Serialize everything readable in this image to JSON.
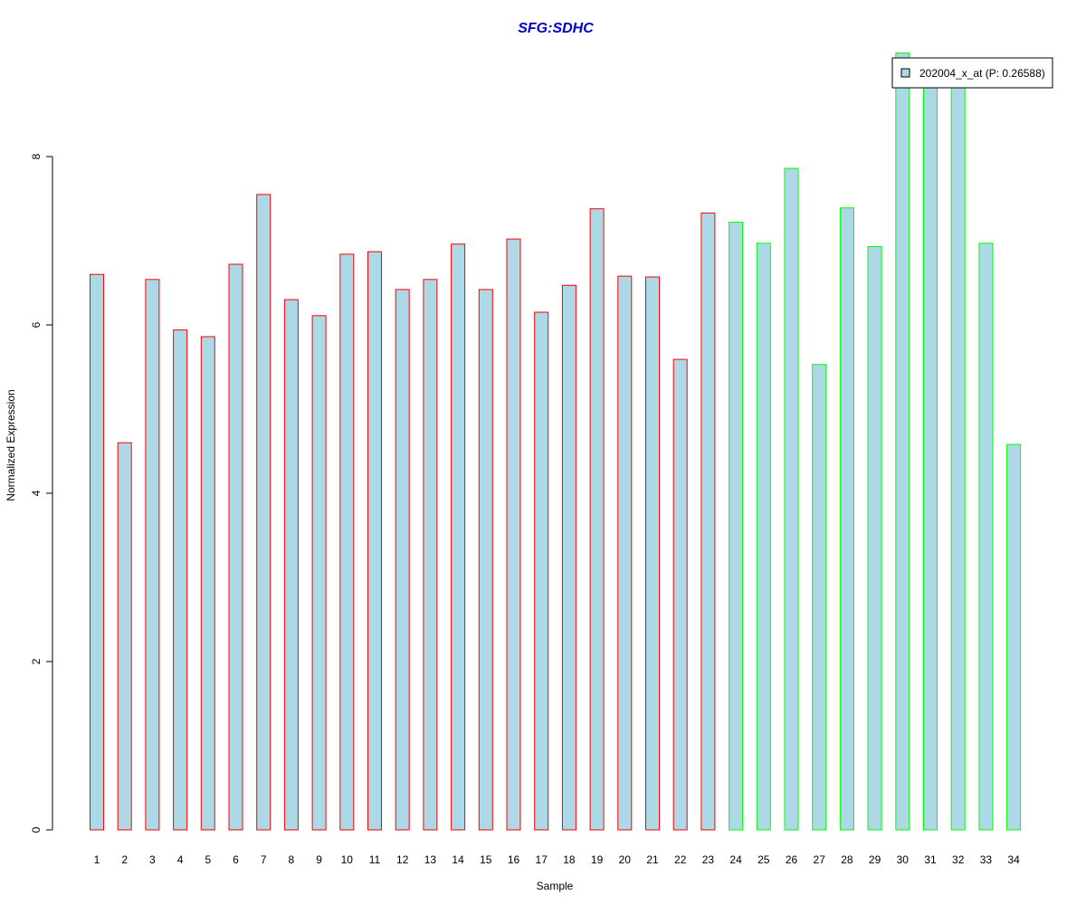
{
  "chart_data": {
    "type": "bar",
    "title": "SFG:SDHC",
    "xlabel": "Sample",
    "ylabel": "Normalized Expression",
    "ylim": [
      0,
      9.3
    ],
    "yticks": [
      0,
      2,
      4,
      6,
      8
    ],
    "grid": false,
    "legend": {
      "placement": "top-right",
      "entries": [
        "202004_x_at (P: 0.26588)"
      ]
    },
    "categories": [
      "1",
      "2",
      "3",
      "4",
      "5",
      "6",
      "7",
      "8",
      "9",
      "10",
      "11",
      "12",
      "13",
      "14",
      "15",
      "16",
      "17",
      "18",
      "19",
      "20",
      "21",
      "22",
      "23",
      "24",
      "25",
      "26",
      "27",
      "28",
      "29",
      "30",
      "31",
      "32",
      "33",
      "34"
    ],
    "series": [
      {
        "name": "202004_x_at (P: 0.26588)",
        "values": [
          6.6,
          4.6,
          6.54,
          5.94,
          5.86,
          6.72,
          7.55,
          6.3,
          6.11,
          6.84,
          6.87,
          6.42,
          6.54,
          6.96,
          6.42,
          7.02,
          6.15,
          6.47,
          7.38,
          6.58,
          6.57,
          5.59,
          7.33,
          7.22,
          6.97,
          7.86,
          5.53,
          7.39,
          6.93,
          9.23,
          9.0,
          9.0,
          6.97,
          4.58
        ]
      }
    ],
    "groups": [
      "red",
      "red",
      "red",
      "red",
      "red",
      "red",
      "red",
      "red",
      "red",
      "red",
      "red",
      "red",
      "red",
      "red",
      "red",
      "red",
      "red",
      "red",
      "red",
      "red",
      "red",
      "red",
      "red",
      "green",
      "green",
      "green",
      "green",
      "green",
      "green",
      "green",
      "green",
      "green",
      "green",
      "green"
    ],
    "colors": {
      "fill": "#add8e6",
      "border_group1": "#ff0000",
      "border_group2": "#00ff00",
      "title": "#0000cc",
      "axis": "#000000"
    }
  }
}
